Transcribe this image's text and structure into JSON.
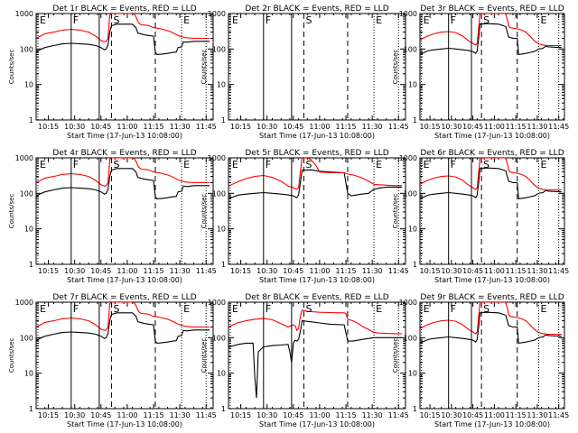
{
  "figure": {
    "background": "#ffffff",
    "event_color": "#000000",
    "lld_color": "#ff0000",
    "ylabel": "Counts/sec",
    "xlabel": "Start Time (17-Jun-13 10:08:00)"
  },
  "chart_data": [
    {
      "type": "line",
      "title": "Det 1r BLACK = Events, RED = LLD",
      "has_data": true,
      "variant": 0
    },
    {
      "type": "line",
      "title": "Det 2r BLACK = Events, RED = LLD",
      "has_data": false,
      "variant": 0
    },
    {
      "type": "line",
      "title": "Det 3r BLACK = Events, RED = LLD",
      "has_data": true,
      "variant": 1
    },
    {
      "type": "line",
      "title": "Det 4r BLACK = Events, RED = LLD",
      "has_data": true,
      "variant": 0
    },
    {
      "type": "line",
      "title": "Det 5r BLACK = Events, RED = LLD",
      "has_data": true,
      "variant": 2
    },
    {
      "type": "line",
      "title": "Det 6r BLACK = Events, RED = LLD",
      "has_data": true,
      "variant": 1
    },
    {
      "type": "line",
      "title": "Det 7r BLACK = Events, RED = LLD",
      "has_data": true,
      "variant": 0
    },
    {
      "type": "line",
      "title": "Det 8r BLACK = Events, RED = LLD",
      "has_data": true,
      "variant": 3
    },
    {
      "type": "line",
      "title": "Det 9r BLACK = Events, RED = LLD",
      "has_data": true,
      "variant": 1
    }
  ],
  "axes": {
    "x_unit": "minutes after 10:08",
    "xlim": [
      0,
      101
    ],
    "xtick_values": [
      7,
      22,
      37,
      52,
      67,
      82,
      97
    ],
    "xtick_labels": [
      "10:15",
      "10:30",
      "10:45",
      "11:00",
      "11:15",
      "11:30",
      "11:45"
    ],
    "ylim": [
      1,
      1000
    ],
    "yscale": "log",
    "ytick_values": [
      1,
      10,
      100,
      1000
    ],
    "ytick_labels": [
      "1",
      "10",
      "100",
      "1000"
    ]
  },
  "markers": [
    {
      "label": "E",
      "x": 1,
      "style": "dotted"
    },
    {
      "label": "F",
      "x": 20,
      "style": "solid"
    },
    {
      "label": "",
      "x": 36,
      "style": "solid"
    },
    {
      "label": "S",
      "x": 43,
      "style": "dashed"
    },
    {
      "label": "",
      "x": 68,
      "style": "dashed"
    },
    {
      "label": "E",
      "x": 83,
      "style": "dotted"
    },
    {
      "label": "",
      "x": 97,
      "style": "dotted"
    }
  ],
  "variants": [
    {
      "red": [
        [
          0,
          200
        ],
        [
          5,
          270
        ],
        [
          10,
          300
        ],
        [
          15,
          340
        ],
        [
          20,
          360
        ],
        [
          25,
          340
        ],
        [
          30,
          300
        ],
        [
          34,
          230
        ],
        [
          37,
          175
        ],
        [
          39,
          160
        ],
        [
          40,
          165
        ],
        [
          41,
          200
        ],
        [
          42,
          900
        ],
        [
          43,
          1000
        ],
        [
          55,
          1000
        ],
        [
          56,
          950
        ],
        [
          57,
          800
        ],
        [
          58,
          600
        ],
        [
          59,
          520
        ],
        [
          60,
          480
        ],
        [
          63,
          470
        ],
        [
          65,
          440
        ],
        [
          67,
          400
        ],
        [
          70,
          380
        ],
        [
          73,
          350
        ],
        [
          76,
          320
        ],
        [
          79,
          270
        ],
        [
          82,
          230
        ],
        [
          85,
          210
        ],
        [
          90,
          200
        ],
        [
          95,
          200
        ],
        [
          99,
          200
        ]
      ],
      "black": [
        [
          0,
          80
        ],
        [
          2,
          95
        ],
        [
          5,
          110
        ],
        [
          10,
          125
        ],
        [
          15,
          140
        ],
        [
          20,
          145
        ],
        [
          25,
          140
        ],
        [
          30,
          135
        ],
        [
          34,
          125
        ],
        [
          37,
          110
        ],
        [
          39,
          95
        ],
        [
          40,
          100
        ],
        [
          41,
          130
        ],
        [
          42,
          300
        ],
        [
          43,
          450
        ],
        [
          46,
          500
        ],
        [
          55,
          500
        ],
        [
          57,
          400
        ],
        [
          58,
          280
        ],
        [
          62,
          250
        ],
        [
          67,
          230
        ],
        [
          68,
          80
        ],
        [
          69,
          70
        ],
        [
          72,
          72
        ],
        [
          75,
          75
        ],
        [
          78,
          80
        ],
        [
          80,
          82
        ],
        [
          81,
          110
        ],
        [
          83,
          115
        ],
        [
          84,
          160
        ],
        [
          86,
          155
        ],
        [
          88,
          160
        ],
        [
          90,
          165
        ],
        [
          95,
          165
        ],
        [
          99,
          165
        ]
      ]
    },
    {
      "red": [
        [
          0,
          180
        ],
        [
          5,
          230
        ],
        [
          10,
          270
        ],
        [
          15,
          300
        ],
        [
          20,
          310
        ],
        [
          25,
          290
        ],
        [
          30,
          230
        ],
        [
          34,
          170
        ],
        [
          37,
          145
        ],
        [
          38,
          135
        ],
        [
          39,
          130
        ],
        [
          40,
          145
        ],
        [
          41,
          400
        ],
        [
          42,
          1000
        ],
        [
          60,
          1000
        ],
        [
          61,
          700
        ],
        [
          62,
          450
        ],
        [
          63,
          400
        ],
        [
          66,
          380
        ],
        [
          68,
          370
        ],
        [
          71,
          340
        ],
        [
          74,
          300
        ],
        [
          77,
          230
        ],
        [
          80,
          170
        ],
        [
          83,
          140
        ],
        [
          86,
          130
        ],
        [
          90,
          125
        ],
        [
          95,
          125
        ],
        [
          99,
          125
        ]
      ],
      "black": [
        [
          0,
          70
        ],
        [
          3,
          80
        ],
        [
          6,
          90
        ],
        [
          10,
          95
        ],
        [
          15,
          100
        ],
        [
          20,
          105
        ],
        [
          25,
          100
        ],
        [
          30,
          95
        ],
        [
          34,
          90
        ],
        [
          37,
          85
        ],
        [
          38,
          80
        ],
        [
          39,
          75
        ],
        [
          40,
          90
        ],
        [
          41,
          200
        ],
        [
          42,
          500
        ],
        [
          47,
          520
        ],
        [
          55,
          500
        ],
        [
          60,
          430
        ],
        [
          62,
          220
        ],
        [
          65,
          200
        ],
        [
          68,
          200
        ],
        [
          69,
          70
        ],
        [
          71,
          72
        ],
        [
          74,
          75
        ],
        [
          77,
          80
        ],
        [
          80,
          85
        ],
        [
          83,
          100
        ],
        [
          86,
          105
        ],
        [
          88,
          120
        ],
        [
          90,
          115
        ],
        [
          95,
          112
        ],
        [
          99,
          110
        ]
      ]
    },
    {
      "red": [
        [
          0,
          160
        ],
        [
          5,
          210
        ],
        [
          10,
          260
        ],
        [
          15,
          300
        ],
        [
          20,
          320
        ],
        [
          25,
          280
        ],
        [
          30,
          220
        ],
        [
          34,
          160
        ],
        [
          37,
          145
        ],
        [
          38,
          135
        ],
        [
          39,
          130
        ],
        [
          40,
          145
        ],
        [
          41,
          400
        ],
        [
          42,
          1000
        ],
        [
          45,
          1000
        ],
        [
          47,
          900
        ],
        [
          50,
          600
        ],
        [
          52,
          400
        ],
        [
          58,
          380
        ],
        [
          66,
          380
        ],
        [
          68,
          350
        ],
        [
          71,
          330
        ],
        [
          74,
          300
        ],
        [
          77,
          260
        ],
        [
          80,
          220
        ],
        [
          83,
          180
        ],
        [
          86,
          175
        ],
        [
          90,
          170
        ],
        [
          95,
          165
        ],
        [
          99,
          165
        ]
      ],
      "black": [
        [
          0,
          70
        ],
        [
          3,
          80
        ],
        [
          6,
          90
        ],
        [
          10,
          95
        ],
        [
          15,
          100
        ],
        [
          20,
          105
        ],
        [
          25,
          100
        ],
        [
          30,
          95
        ],
        [
          34,
          90
        ],
        [
          37,
          85
        ],
        [
          38,
          80
        ],
        [
          39,
          75
        ],
        [
          40,
          90
        ],
        [
          41,
          200
        ],
        [
          42,
          450
        ],
        [
          47,
          460
        ],
        [
          52,
          420
        ],
        [
          58,
          400
        ],
        [
          66,
          380
        ],
        [
          68,
          100
        ],
        [
          70,
          85
        ],
        [
          73,
          90
        ],
        [
          76,
          95
        ],
        [
          80,
          100
        ],
        [
          81,
          110
        ],
        [
          83,
          130
        ],
        [
          86,
          140
        ],
        [
          90,
          150
        ],
        [
          95,
          150
        ],
        [
          99,
          150
        ]
      ]
    },
    {
      "red": [
        [
          0,
          200
        ],
        [
          5,
          260
        ],
        [
          10,
          300
        ],
        [
          15,
          330
        ],
        [
          20,
          350
        ],
        [
          25,
          320
        ],
        [
          30,
          250
        ],
        [
          34,
          200
        ],
        [
          37,
          230
        ],
        [
          38,
          220
        ],
        [
          39,
          160
        ],
        [
          40,
          180
        ],
        [
          41,
          400
        ],
        [
          42,
          600
        ],
        [
          45,
          550
        ],
        [
          52,
          520
        ],
        [
          58,
          510
        ],
        [
          66,
          500
        ],
        [
          67,
          480
        ],
        [
          68,
          330
        ],
        [
          71,
          300
        ],
        [
          74,
          250
        ],
        [
          77,
          200
        ],
        [
          80,
          170
        ],
        [
          83,
          140
        ],
        [
          86,
          135
        ],
        [
          90,
          132
        ],
        [
          95,
          130
        ],
        [
          99,
          130
        ]
      ],
      "black": [
        [
          0,
          55
        ],
        [
          3,
          60
        ],
        [
          6,
          65
        ],
        [
          10,
          70
        ],
        [
          14,
          70
        ],
        [
          15,
          8
        ],
        [
          16,
          2
        ],
        [
          17,
          40
        ],
        [
          20,
          55
        ],
        [
          25,
          60
        ],
        [
          30,
          62
        ],
        [
          34,
          65
        ],
        [
          35,
          40
        ],
        [
          36,
          20
        ],
        [
          37,
          70
        ],
        [
          38,
          85
        ],
        [
          39,
          80
        ],
        [
          40,
          90
        ],
        [
          41,
          150
        ],
        [
          42,
          300
        ],
        [
          47,
          280
        ],
        [
          52,
          260
        ],
        [
          58,
          240
        ],
        [
          66,
          230
        ],
        [
          68,
          80
        ],
        [
          71,
          80
        ],
        [
          74,
          85
        ],
        [
          77,
          90
        ],
        [
          80,
          95
        ],
        [
          83,
          100
        ],
        [
          86,
          100
        ],
        [
          90,
          100
        ],
        [
          95,
          100
        ],
        [
          99,
          100
        ]
      ]
    }
  ]
}
